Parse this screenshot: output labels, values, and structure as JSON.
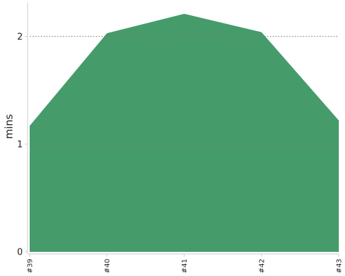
{
  "chart_data": {
    "type": "area",
    "x": [
      "#39",
      "#40",
      "#41",
      "#42",
      "#43"
    ],
    "series": [
      {
        "values": [
          1.17,
          2.03,
          2.21,
          2.04,
          1.22
        ]
      }
    ],
    "xlabel": "",
    "ylabel": "mins",
    "ylim": [
      0,
      2.3
    ],
    "yticks": [
      0,
      1,
      2
    ],
    "grid": "horizontal dashed at y ticks",
    "colors": {
      "area": "#459C6A",
      "grid": "#777777",
      "axis": "#cccccc"
    }
  }
}
